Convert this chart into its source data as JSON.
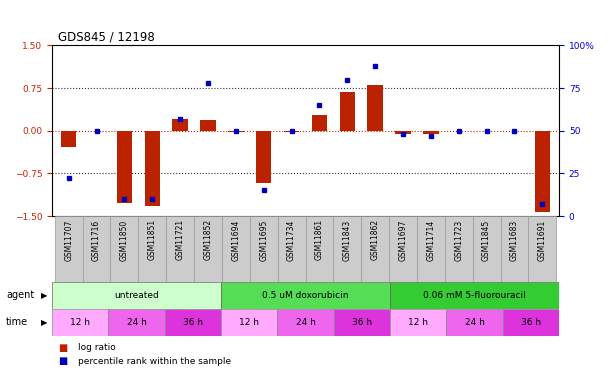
{
  "title": "GDS845 / 12198",
  "samples": [
    "GSM11707",
    "GSM11716",
    "GSM11850",
    "GSM11851",
    "GSM11721",
    "GSM11852",
    "GSM11694",
    "GSM11695",
    "GSM11734",
    "GSM11861",
    "GSM11843",
    "GSM11862",
    "GSM11697",
    "GSM11714",
    "GSM11723",
    "GSM11845",
    "GSM11683",
    "GSM11691"
  ],
  "log_ratio": [
    -0.28,
    0.0,
    -1.28,
    -1.32,
    0.2,
    0.18,
    -0.03,
    -0.92,
    -0.03,
    0.28,
    0.68,
    0.8,
    -0.06,
    -0.06,
    0.0,
    0.0,
    0.0,
    -1.43
  ],
  "percentile": [
    22,
    50,
    10,
    10,
    57,
    78,
    50,
    15,
    50,
    65,
    80,
    88,
    48,
    47,
    50,
    50,
    50,
    7
  ],
  "bar_color": "#bb2200",
  "dot_color": "#0000bb",
  "agent_groups": [
    {
      "label": "untreated",
      "start": 0,
      "end": 6,
      "color": "#ccffcc"
    },
    {
      "label": "0.5 uM doxorubicin",
      "start": 6,
      "end": 12,
      "color": "#55dd55"
    },
    {
      "label": "0.06 mM 5-fluorouracil",
      "start": 12,
      "end": 18,
      "color": "#33cc33"
    }
  ],
  "time_groups": [
    {
      "label": "12 h",
      "start": 0,
      "end": 2,
      "color": "#ffaaff"
    },
    {
      "label": "24 h",
      "start": 2,
      "end": 4,
      "color": "#ee66ee"
    },
    {
      "label": "36 h",
      "start": 4,
      "end": 6,
      "color": "#dd33dd"
    },
    {
      "label": "12 h",
      "start": 6,
      "end": 8,
      "color": "#ffaaff"
    },
    {
      "label": "24 h",
      "start": 8,
      "end": 10,
      "color": "#ee66ee"
    },
    {
      "label": "36 h",
      "start": 10,
      "end": 12,
      "color": "#dd33dd"
    },
    {
      "label": "12 h",
      "start": 12,
      "end": 14,
      "color": "#ffaaff"
    },
    {
      "label": "24 h",
      "start": 14,
      "end": 16,
      "color": "#ee66ee"
    },
    {
      "label": "36 h",
      "start": 16,
      "end": 18,
      "color": "#dd33dd"
    }
  ],
  "ylim_left": [
    -1.5,
    1.5
  ],
  "ylim_right": [
    0,
    100
  ],
  "yticks_left": [
    -1.5,
    -0.75,
    0.0,
    0.75,
    1.5
  ],
  "yticks_right": [
    0,
    25,
    50,
    75,
    100
  ],
  "ylabel_left_color": "#cc2200",
  "ylabel_right_color": "#0000cc",
  "hline_color_zero": "#cc2200",
  "hline_color_other": "#333333",
  "background_color": "#ffffff",
  "legend_log_ratio": "log ratio",
  "legend_percentile": "percentile rank within the sample",
  "sample_box_color": "#cccccc",
  "sample_box_edge": "#999999"
}
